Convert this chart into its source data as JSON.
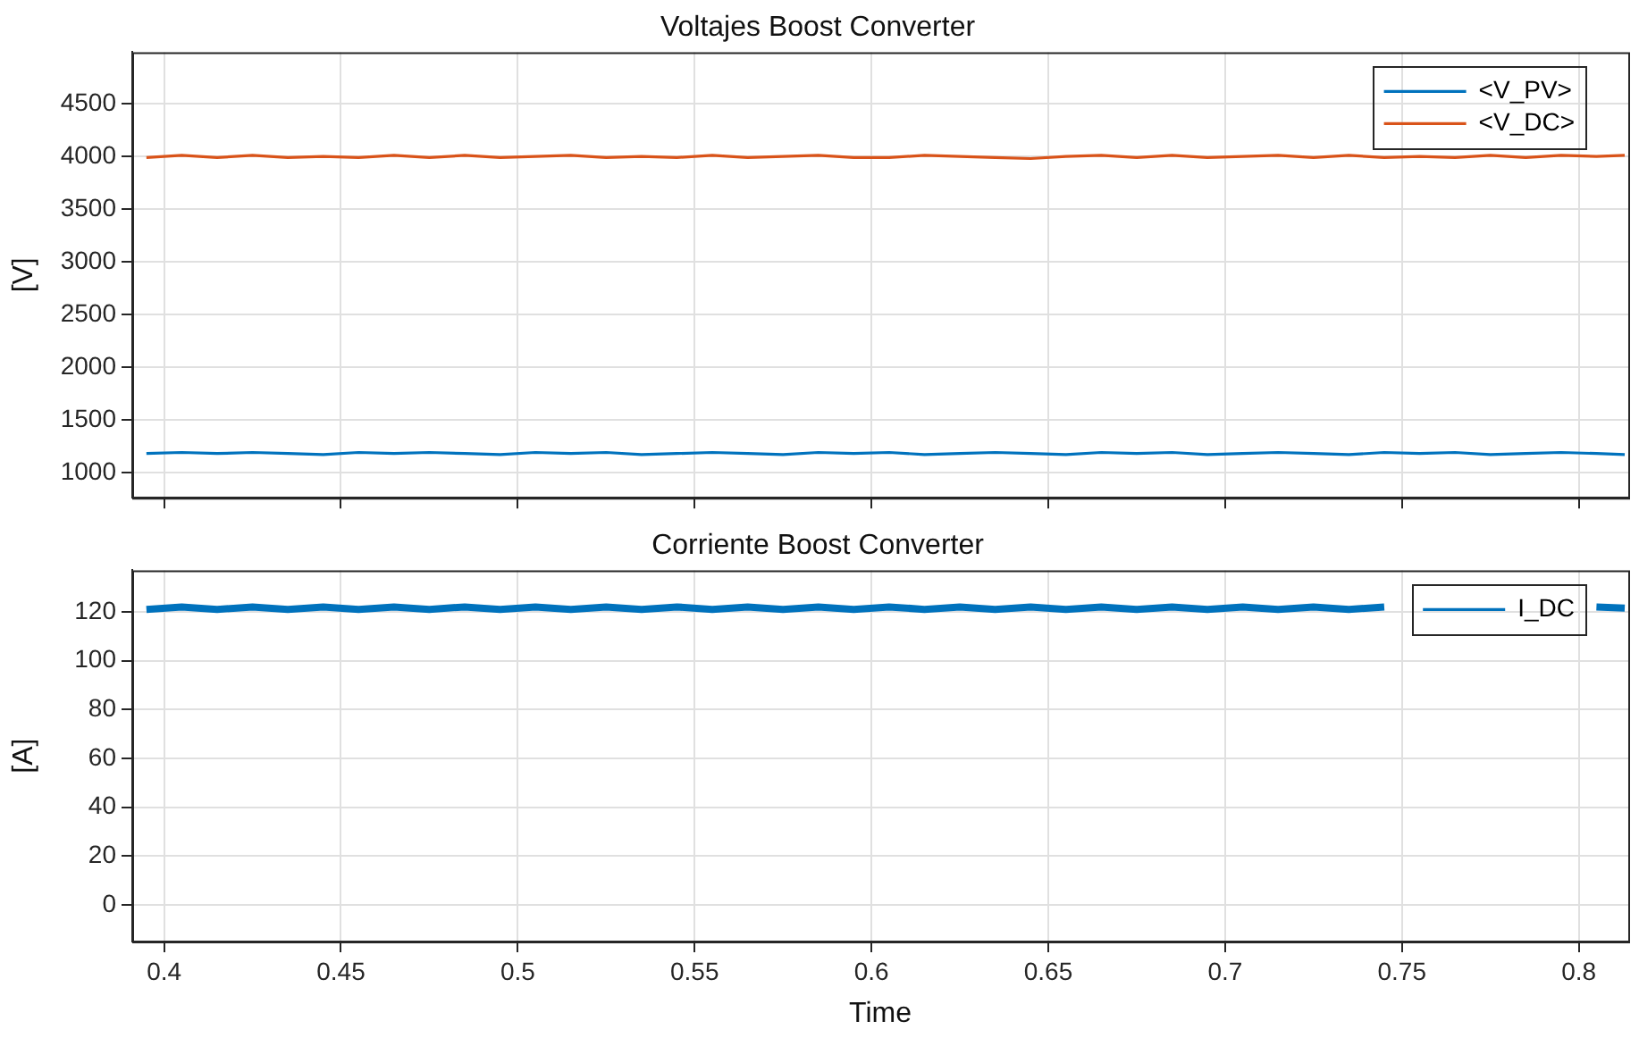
{
  "chart_data": [
    {
      "type": "line",
      "title": "Voltajes Boost Converter",
      "ylabel": "[V]",
      "x": [
        0.395,
        0.405,
        0.415,
        0.425,
        0.435,
        0.445,
        0.455,
        0.465,
        0.475,
        0.485,
        0.495,
        0.505,
        0.515,
        0.525,
        0.535,
        0.545,
        0.555,
        0.565,
        0.575,
        0.585,
        0.595,
        0.605,
        0.615,
        0.625,
        0.635,
        0.645,
        0.655,
        0.665,
        0.675,
        0.685,
        0.695,
        0.705,
        0.715,
        0.725,
        0.735,
        0.745,
        0.755,
        0.765,
        0.775,
        0.785,
        0.795,
        0.805,
        0.813
      ],
      "series": [
        {
          "name": "<V_PV>",
          "color": "#0072bd",
          "values": [
            1180,
            1190,
            1180,
            1190,
            1180,
            1170,
            1190,
            1180,
            1190,
            1180,
            1170,
            1190,
            1180,
            1190,
            1170,
            1180,
            1190,
            1180,
            1170,
            1190,
            1180,
            1190,
            1170,
            1180,
            1190,
            1180,
            1170,
            1190,
            1180,
            1190,
            1170,
            1180,
            1190,
            1180,
            1170,
            1190,
            1180,
            1190,
            1170,
            1180,
            1190,
            1180,
            1170
          ]
        },
        {
          "name": "<V_DC>",
          "color": "#d95319",
          "values": [
            3990,
            4010,
            3990,
            4010,
            3990,
            4000,
            3990,
            4010,
            3990,
            4010,
            3990,
            4000,
            4010,
            3990,
            4000,
            3990,
            4010,
            3990,
            4000,
            4010,
            3990,
            3990,
            4010,
            4000,
            3990,
            3980,
            4000,
            4010,
            3990,
            4010,
            3990,
            4000,
            4010,
            3990,
            4010,
            3990,
            4000,
            3990,
            4010,
            3990,
            4010,
            4000,
            4010
          ]
        }
      ],
      "xlim": [
        0.391,
        0.814
      ],
      "xticks": [
        0.4,
        0.45,
        0.5,
        0.55,
        0.6,
        0.65,
        0.7,
        0.75,
        0.8
      ],
      "ylim": [
        760,
        4990
      ],
      "yticks": [
        1000,
        1500,
        2000,
        2500,
        3000,
        3500,
        4000,
        4500
      ],
      "tick_labels": "y",
      "grid": true,
      "legend": "top right",
      "marker": "none",
      "line_style": "solid"
    },
    {
      "type": "line",
      "title": "Corriente Boost Converter",
      "xlabel": "Time",
      "ylabel": "[A]",
      "x": [
        0.395,
        0.405,
        0.415,
        0.425,
        0.435,
        0.445,
        0.455,
        0.465,
        0.475,
        0.485,
        0.495,
        0.505,
        0.515,
        0.525,
        0.535,
        0.545,
        0.555,
        0.565,
        0.575,
        0.585,
        0.595,
        0.605,
        0.615,
        0.625,
        0.635,
        0.645,
        0.655,
        0.665,
        0.675,
        0.685,
        0.695,
        0.705,
        0.715,
        0.725,
        0.735,
        0.745,
        0.755,
        0.765,
        0.775,
        0.785,
        0.795,
        0.805,
        0.813
      ],
      "series": [
        {
          "name": "I_DC",
          "color": "#0072bd",
          "values": [
            121,
            122,
            121,
            122,
            121,
            122,
            121,
            122,
            121,
            122,
            121,
            122,
            121,
            122,
            121,
            122,
            121,
            122,
            121,
            122,
            121,
            122,
            121,
            122,
            121,
            122,
            121,
            122,
            121,
            122,
            121,
            122,
            121,
            122,
            121,
            122,
            null,
            null,
            null,
            null,
            null,
            122,
            121.5
          ]
        }
      ],
      "xlim": [
        0.391,
        0.814
      ],
      "xticks": [
        0.4,
        0.45,
        0.5,
        0.55,
        0.6,
        0.65,
        0.7,
        0.75,
        0.8
      ],
      "ylim": [
        -15,
        137
      ],
      "yticks": [
        0,
        20,
        40,
        60,
        80,
        100,
        120
      ],
      "grid": true,
      "legend": "top right",
      "marker": "none",
      "line_style": "solid"
    }
  ]
}
